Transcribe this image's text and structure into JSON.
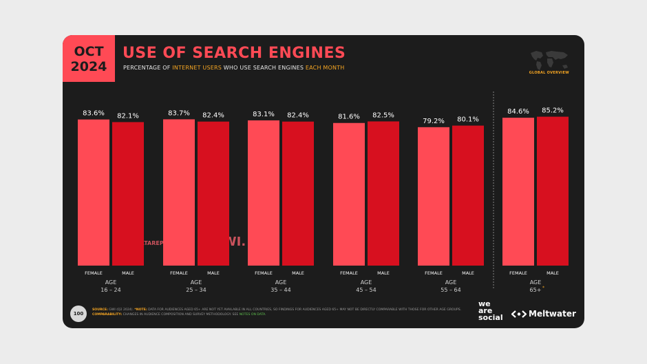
{
  "header": {
    "month": "OCT",
    "year": "2024",
    "title": "USE OF SEARCH ENGINES",
    "subtitle_1": "PERCENTAGE OF ",
    "subtitle_hl_1": "INTERNET USERS",
    "subtitle_2": " WHO USE SEARCH ENGINES ",
    "subtitle_hl_2": "EACH MONTH",
    "map_label": "GLOBAL OVERVIEW"
  },
  "chart_data": {
    "type": "bar",
    "categories": [
      "16 – 24",
      "25 – 34",
      "35 – 44",
      "45 – 54",
      "55 – 64",
      "65+"
    ],
    "group_label": "AGE",
    "series": [
      {
        "name": "FEMALE",
        "values": [
          83.6,
          83.7,
          83.1,
          81.6,
          79.2,
          84.6
        ],
        "color": "#ff4a55"
      },
      {
        "name": "MALE",
        "values": [
          82.1,
          82.4,
          82.4,
          82.5,
          80.1,
          85.2
        ],
        "color": "#d7101f"
      }
    ],
    "value_suffix": "%",
    "title": "USE OF SEARCH ENGINES",
    "xlabel": "AGE",
    "ylabel": "",
    "ylim": [
      0,
      100
    ],
    "footnote_marker": "*"
  },
  "watermarks": {
    "datareportal": "DATAREPORTAL",
    "gwi": "GWI."
  },
  "footer": {
    "page_number": "100",
    "source_label": "SOURCE:",
    "source_text": " GWI (Q2 2024). ",
    "note_label": "*NOTE:",
    "note_text": " DATA FOR AUDIENCES AGED 65+ ARE NOT YET AVAILABLE IN ALL COUNTRIES, SO FINDINGS FOR AUDIENCES AGED 65+ MAY NOT BE DIRECTLY COMPARABLE WITH THOSE FOR OTHER AGE GROUPS. ",
    "comparability_label": "COMPARABILITY:",
    "comparability_text": " CHANGES IN AUDIENCE COMPOSITION AND SURVEY METHODOLOGY. SEE ",
    "notes_link": "NOTES ON DATA",
    "notes_end": ".",
    "brand_1_line1": "we",
    "brand_1_line2": "are",
    "brand_1_line3": "social",
    "brand_2": "Meltwater"
  },
  "colors": {
    "accent": "#ff4a55",
    "background": "#1c1c1c",
    "highlight": "#f6a623"
  }
}
